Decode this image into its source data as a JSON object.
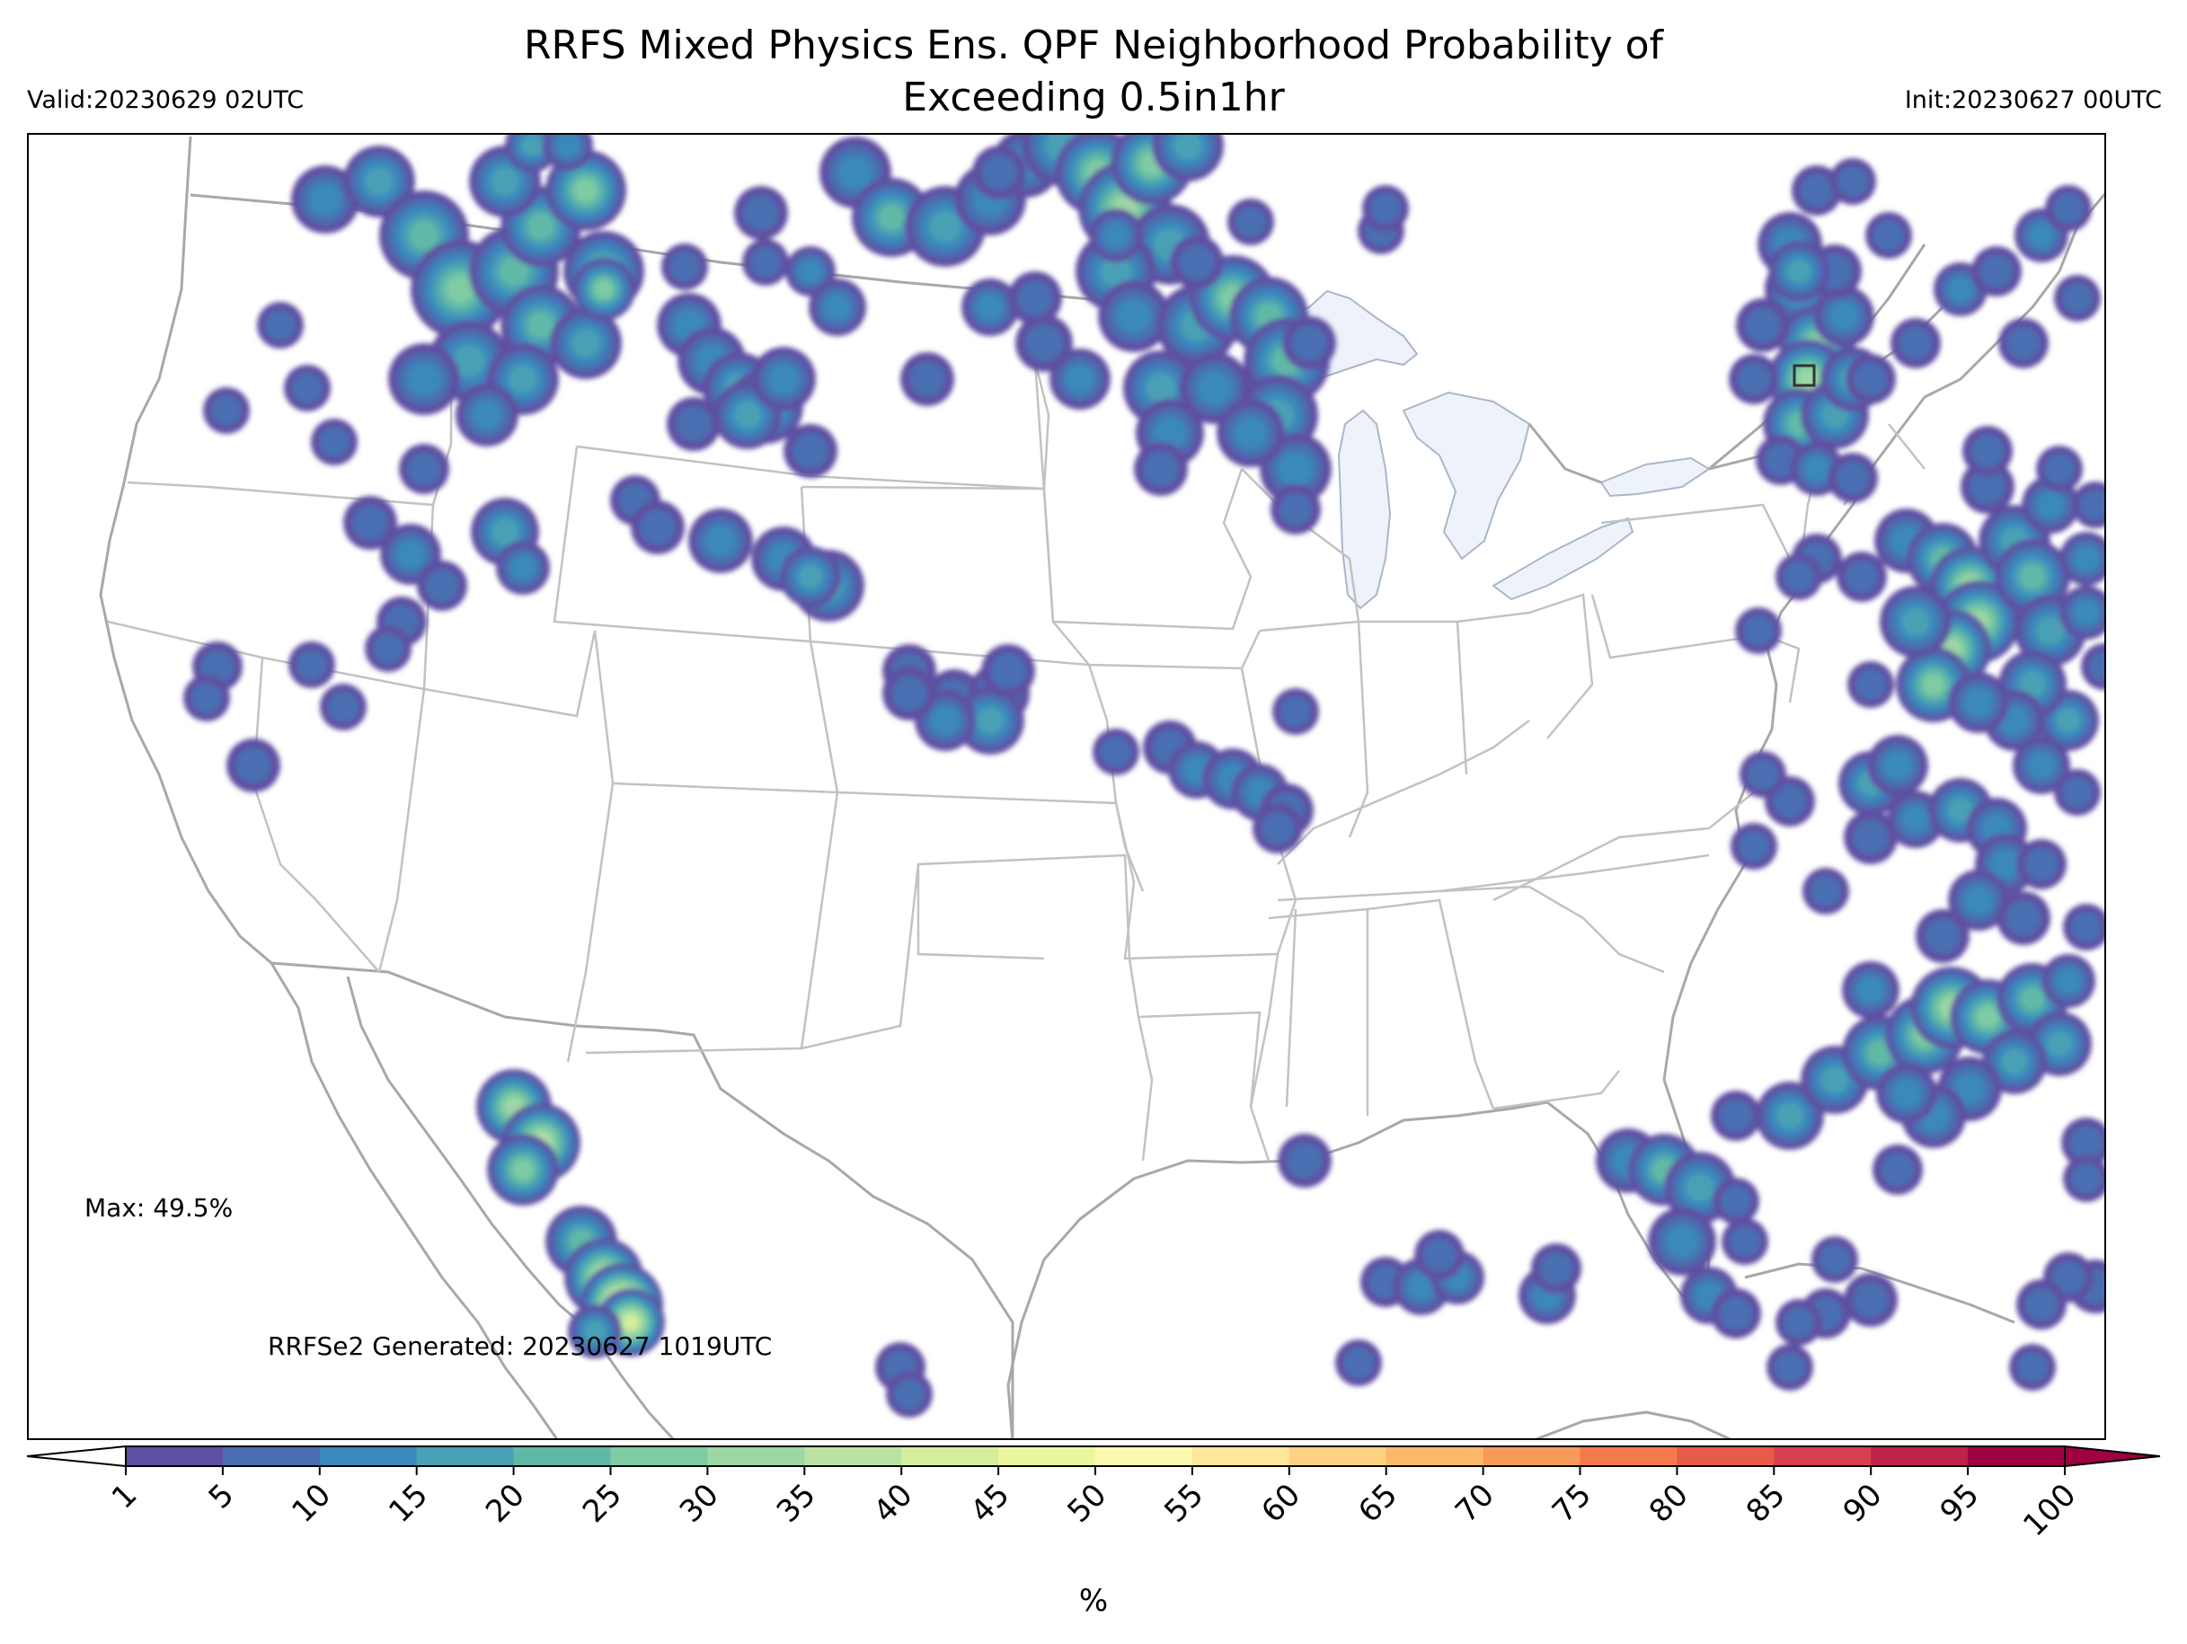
{
  "header": {
    "title_line1": "RRFS Mixed Physics Ens. QPF Neighborhood Probability of",
    "title_line2": "Exceeding 0.5in1hr",
    "valid": "Valid:20230629 02UTC",
    "init": "Init:20230627 00UTC"
  },
  "annotations": {
    "max": "Max: 49.5%",
    "generated": "RRFSe2 Generated: 20230627 1019UTC"
  },
  "colorbar": {
    "unit": "%",
    "ticks": [
      "1",
      "5",
      "10",
      "15",
      "20",
      "25",
      "30",
      "35",
      "40",
      "45",
      "50",
      "55",
      "60",
      "65",
      "70",
      "75",
      "80",
      "85",
      "90",
      "95",
      "100"
    ],
    "colors": [
      "#5e4fa2",
      "#4a6eb1",
      "#3b88bc",
      "#4aa0b4",
      "#60b9a7",
      "#7fcba4",
      "#9dd7a4",
      "#bae3a3",
      "#d5ee9c",
      "#eaf79e",
      "#fbf8b0",
      "#fee79a",
      "#fdd282",
      "#fcb96a",
      "#f99b58",
      "#f57a4b",
      "#e65c48",
      "#d6404e",
      "#bd2248",
      "#9e0142"
    ],
    "under_color": "#ffffff",
    "over_color": "#9e0142"
  },
  "map": {
    "projection": "Lambert conformal, CONUS",
    "boundary_color": "#b4b4b4",
    "water_color": "#eef3fa",
    "highlighted_box": {
      "lat": 44.3,
      "lon": -72.6
    }
  }
}
